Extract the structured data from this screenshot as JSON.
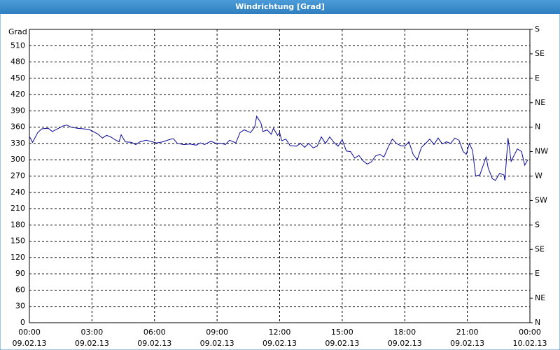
{
  "chart_data": {
    "type": "line",
    "title": "Windrichtung [Grad]",
    "y_label": "Grad",
    "x": [
      0,
      0.15,
      0.4,
      0.6,
      0.9,
      1.1,
      1.3,
      1.6,
      1.8,
      2.0,
      2.3,
      2.6,
      2.9,
      3.1,
      3.3,
      3.5,
      3.7,
      3.9,
      4.1,
      4.3,
      4.4,
      4.6,
      4.9,
      5.1,
      5.3,
      5.6,
      5.9,
      6.1,
      6.4,
      6.7,
      6.9,
      7.1,
      7.4,
      7.7,
      8.0,
      8.2,
      8.4,
      8.7,
      8.9,
      9.2,
      9.4,
      9.6,
      9.9,
      10.1,
      10.3,
      10.6,
      10.8,
      10.9,
      11.1,
      11.2,
      11.4,
      11.6,
      11.7,
      11.9,
      12.0,
      12.1,
      12.3,
      12.5,
      12.8,
      13.0,
      13.2,
      13.4,
      13.6,
      13.8,
      14.0,
      14.2,
      14.4,
      14.6,
      14.8,
      15.0,
      15.2,
      15.4,
      15.6,
      15.8,
      16.0,
      16.2,
      16.4,
      16.6,
      16.8,
      17.0,
      17.2,
      17.4,
      17.6,
      17.8,
      18.0,
      18.2,
      18.4,
      18.6,
      18.8,
      19.0,
      19.2,
      19.4,
      19.6,
      19.8,
      20.0,
      20.2,
      20.4,
      20.6,
      20.8,
      20.95,
      21.1,
      21.25,
      21.4,
      21.6,
      21.9,
      22.0,
      22.2,
      22.35,
      22.55,
      22.75,
      22.8,
      22.95,
      23.1,
      23.4,
      23.6,
      23.75,
      23.9
    ],
    "series": [
      {
        "color": "#0a0a9a",
        "values": [
          343,
          332,
          350,
          357,
          358,
          352,
          356,
          362,
          364,
          360,
          358,
          357,
          355,
          351,
          347,
          340,
          345,
          342,
          337,
          333,
          346,
          333,
          332,
          328,
          333,
          336,
          333,
          331,
          333,
          337,
          339,
          330,
          328,
          329,
          327,
          331,
          328,
          334,
          331,
          330,
          328,
          336,
          331,
          350,
          355,
          350,
          360,
          380,
          368,
          352,
          355,
          347,
          358,
          345,
          350,
          335,
          338,
          326,
          325,
          330,
          323,
          330,
          322,
          325,
          342,
          330,
          342,
          332,
          325,
          337,
          316,
          315,
          303,
          308,
          298,
          292,
          296,
          307,
          310,
          305,
          323,
          338,
          330,
          326,
          325,
          333,
          310,
          300,
          323,
          330,
          338,
          328,
          340,
          329,
          333,
          330,
          340,
          336,
          315,
          310,
          330,
          317,
          270,
          272,
          305,
          285,
          265,
          262,
          275,
          272,
          262,
          340,
          297,
          320,
          315,
          290,
          300
        ]
      }
    ],
    "xlim": [
      0,
      24
    ],
    "xticks": [
      {
        "value": 0,
        "label": "00:00",
        "date": "09.02.13"
      },
      {
        "value": 3,
        "label": "03:00",
        "date": "09.02.13"
      },
      {
        "value": 6,
        "label": "06:00",
        "date": "09.02.13"
      },
      {
        "value": 9,
        "label": "09:00",
        "date": "09.02.13"
      },
      {
        "value": 12,
        "label": "12:00",
        "date": "09.02.13"
      },
      {
        "value": 15,
        "label": "15:00",
        "date": "09.02.13"
      },
      {
        "value": 18,
        "label": "18:00",
        "date": "09.02.13"
      },
      {
        "value": 21,
        "label": "21:00",
        "date": "09.02.13"
      },
      {
        "value": 24,
        "label": "00:00",
        "date": "10.02.13"
      }
    ],
    "ylim": [
      0,
      540
    ],
    "yticks": [
      0,
      30,
      60,
      90,
      120,
      150,
      180,
      210,
      240,
      270,
      300,
      330,
      360,
      390,
      420,
      450,
      480,
      510
    ],
    "y2lim": [
      0,
      540
    ],
    "y2ticks": [
      {
        "value": 0,
        "label": "N"
      },
      {
        "value": 45,
        "label": "NE"
      },
      {
        "value": 90,
        "label": "E"
      },
      {
        "value": 135,
        "label": "SE"
      },
      {
        "value": 180,
        "label": "S"
      },
      {
        "value": 225,
        "label": "SW"
      },
      {
        "value": 270,
        "label": "W"
      },
      {
        "value": 315,
        "label": "NW"
      },
      {
        "value": 360,
        "label": "N"
      },
      {
        "value": 405,
        "label": "NE"
      },
      {
        "value": 450,
        "label": "E"
      },
      {
        "value": 495,
        "label": "SE"
      },
      {
        "value": 540,
        "label": "S"
      }
    ],
    "grid": true
  }
}
